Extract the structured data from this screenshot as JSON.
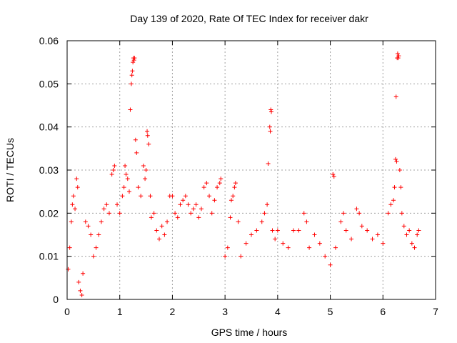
{
  "chart_data": {
    "type": "scatter",
    "title": "Day 139 of 2020, Rate Of TEC Index for receiver dakr",
    "xlabel": "GPS time / hours",
    "ylabel": "ROTI / TECUs",
    "xlim": [
      0,
      7
    ],
    "ylim": [
      0,
      0.06
    ],
    "x_ticks": [
      "0",
      "1",
      "2",
      "3",
      "4",
      "5",
      "6",
      "7"
    ],
    "y_ticks": [
      "0",
      "0.01",
      "0.02",
      "0.03",
      "0.04",
      "0.05",
      "0.06"
    ],
    "grid": true,
    "marker": "+",
    "point_color": "#ff0000",
    "series": [
      {
        "points": [
          [
            0.02,
            0.007
          ],
          [
            0.05,
            0.012
          ],
          [
            0.08,
            0.018
          ],
          [
            0.1,
            0.022
          ],
          [
            0.12,
            0.024
          ],
          [
            0.15,
            0.021
          ],
          [
            0.18,
            0.028
          ],
          [
            0.2,
            0.026
          ],
          [
            0.22,
            0.004
          ],
          [
            0.25,
            0.002
          ],
          [
            0.28,
            0.001
          ],
          [
            0.3,
            0.006
          ],
          [
            0.35,
            0.018
          ],
          [
            0.4,
            0.017
          ],
          [
            0.45,
            0.015
          ],
          [
            0.5,
            0.01
          ],
          [
            0.55,
            0.012
          ],
          [
            0.6,
            0.015
          ],
          [
            0.65,
            0.018
          ],
          [
            0.7,
            0.021
          ],
          [
            0.75,
            0.022
          ],
          [
            0.8,
            0.02
          ],
          [
            0.85,
            0.029
          ],
          [
            0.88,
            0.03
          ],
          [
            0.9,
            0.031
          ],
          [
            0.95,
            0.022
          ],
          [
            1.0,
            0.02
          ],
          [
            1.05,
            0.024
          ],
          [
            1.08,
            0.026
          ],
          [
            1.1,
            0.031
          ],
          [
            1.12,
            0.029
          ],
          [
            1.15,
            0.028
          ],
          [
            1.18,
            0.025
          ],
          [
            1.2,
            0.044
          ],
          [
            1.22,
            0.05
          ],
          [
            1.23,
            0.052
          ],
          [
            1.24,
            0.053
          ],
          [
            1.25,
            0.055
          ],
          [
            1.26,
            0.056
          ],
          [
            1.27,
            0.0555
          ],
          [
            1.28,
            0.056
          ],
          [
            1.3,
            0.037
          ],
          [
            1.32,
            0.034
          ],
          [
            1.35,
            0.026
          ],
          [
            1.4,
            0.024
          ],
          [
            1.45,
            0.031
          ],
          [
            1.48,
            0.028
          ],
          [
            1.5,
            0.03
          ],
          [
            1.52,
            0.039
          ],
          [
            1.53,
            0.038
          ],
          [
            1.55,
            0.036
          ],
          [
            1.58,
            0.024
          ],
          [
            1.6,
            0.019
          ],
          [
            1.65,
            0.02
          ],
          [
            1.7,
            0.016
          ],
          [
            1.75,
            0.014
          ],
          [
            1.8,
            0.017
          ],
          [
            1.85,
            0.015
          ],
          [
            1.9,
            0.018
          ],
          [
            1.95,
            0.024
          ],
          [
            2.0,
            0.024
          ],
          [
            2.05,
            0.02
          ],
          [
            2.1,
            0.019
          ],
          [
            2.15,
            0.022
          ],
          [
            2.2,
            0.023
          ],
          [
            2.25,
            0.024
          ],
          [
            2.3,
            0.022
          ],
          [
            2.35,
            0.02
          ],
          [
            2.4,
            0.021
          ],
          [
            2.45,
            0.022
          ],
          [
            2.5,
            0.019
          ],
          [
            2.55,
            0.021
          ],
          [
            2.6,
            0.026
          ],
          [
            2.65,
            0.027
          ],
          [
            2.7,
            0.024
          ],
          [
            2.75,
            0.02
          ],
          [
            2.8,
            0.023
          ],
          [
            2.85,
            0.026
          ],
          [
            2.9,
            0.027
          ],
          [
            2.92,
            0.028
          ],
          [
            3.0,
            0.01
          ],
          [
            3.05,
            0.012
          ],
          [
            3.1,
            0.019
          ],
          [
            3.12,
            0.023
          ],
          [
            3.15,
            0.024
          ],
          [
            3.18,
            0.026
          ],
          [
            3.2,
            0.027
          ],
          [
            3.25,
            0.018
          ],
          [
            3.3,
            0.01
          ],
          [
            3.4,
            0.013
          ],
          [
            3.5,
            0.015
          ],
          [
            3.6,
            0.016
          ],
          [
            3.7,
            0.018
          ],
          [
            3.75,
            0.02
          ],
          [
            3.8,
            0.022
          ],
          [
            3.82,
            0.0315
          ],
          [
            3.85,
            0.04
          ],
          [
            3.86,
            0.039
          ],
          [
            3.87,
            0.044
          ],
          [
            3.88,
            0.0435
          ],
          [
            3.9,
            0.016
          ],
          [
            3.95,
            0.014
          ],
          [
            4.0,
            0.016
          ],
          [
            4.1,
            0.013
          ],
          [
            4.2,
            0.012
          ],
          [
            4.3,
            0.016
          ],
          [
            4.4,
            0.016
          ],
          [
            4.5,
            0.02
          ],
          [
            4.55,
            0.018
          ],
          [
            4.6,
            0.012
          ],
          [
            4.7,
            0.015
          ],
          [
            4.8,
            0.013
          ],
          [
            4.9,
            0.01
          ],
          [
            5.0,
            0.008
          ],
          [
            5.05,
            0.029
          ],
          [
            5.07,
            0.0285
          ],
          [
            5.1,
            0.012
          ],
          [
            5.2,
            0.018
          ],
          [
            5.25,
            0.02
          ],
          [
            5.3,
            0.016
          ],
          [
            5.4,
            0.014
          ],
          [
            5.5,
            0.021
          ],
          [
            5.55,
            0.02
          ],
          [
            5.6,
            0.017
          ],
          [
            5.7,
            0.016
          ],
          [
            5.8,
            0.014
          ],
          [
            5.9,
            0.015
          ],
          [
            6.0,
            0.013
          ],
          [
            6.1,
            0.02
          ],
          [
            6.15,
            0.022
          ],
          [
            6.2,
            0.023
          ],
          [
            6.22,
            0.026
          ],
          [
            6.24,
            0.0325
          ],
          [
            6.25,
            0.047
          ],
          [
            6.26,
            0.032
          ],
          [
            6.27,
            0.056
          ],
          [
            6.28,
            0.057
          ],
          [
            6.29,
            0.056
          ],
          [
            6.3,
            0.0565
          ],
          [
            6.32,
            0.03
          ],
          [
            6.34,
            0.026
          ],
          [
            6.36,
            0.02
          ],
          [
            6.4,
            0.017
          ],
          [
            6.45,
            0.015
          ],
          [
            6.5,
            0.016
          ],
          [
            6.55,
            0.013
          ],
          [
            6.6,
            0.012
          ],
          [
            6.65,
            0.015
          ],
          [
            6.68,
            0.016
          ]
        ]
      }
    ]
  }
}
